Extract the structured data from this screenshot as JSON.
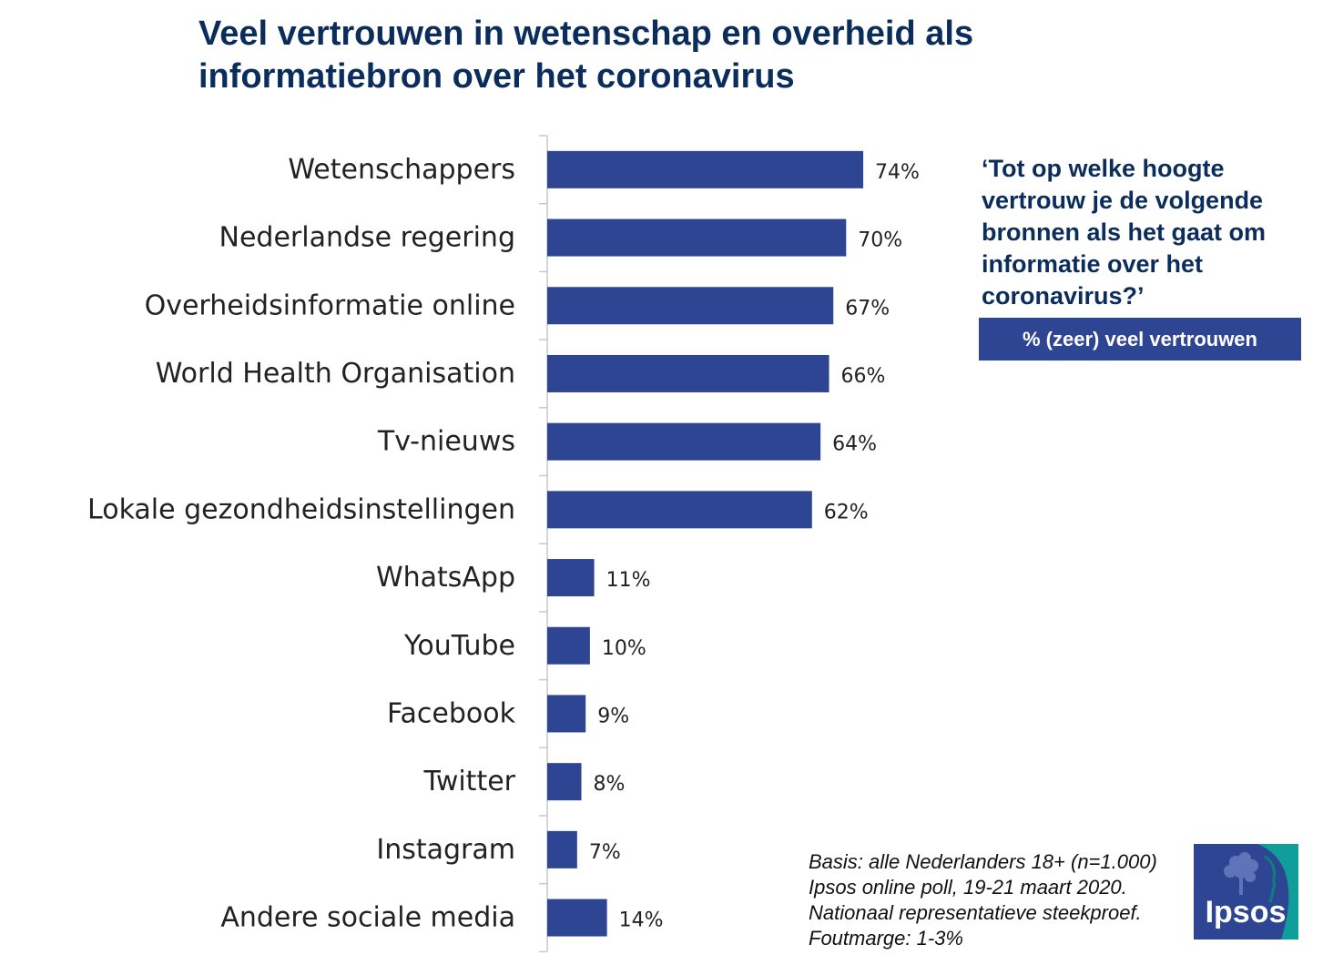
{
  "title": "Veel vertrouwen in wetenschap en overheid als informatiebron over het coronavirus",
  "question": "‘Tot op welke hoogte vertrouw je de volgende bronnen als het gaat om informatie over het coronavirus?’",
  "legend_label": "% (zeer) veel vertrouwen",
  "footnote": [
    "Basis: alle Nederlanders 18+ (n=1.000)",
    "Ipsos online poll, 19-21 maart 2020.",
    "Nationaal representatieve steekproef.",
    "Foutmarge: 1-3%"
  ],
  "logo_text": "Ipsos",
  "colors": {
    "bar": "#2e4593",
    "title": "#0b2d5c",
    "logo_blue": "#2e4593",
    "logo_teal": "#0f9e9a"
  },
  "chart_data": {
    "type": "bar",
    "orientation": "horizontal",
    "title": "Veel vertrouwen in wetenschap en overheid als informatiebron over het coronavirus",
    "series_name": "% (zeer) veel vertrouwen",
    "categories": [
      "Wetenschappers",
      "Nederlandse regering",
      "Overheidsinformatie online",
      "World Health Organisation",
      "Tv-nieuws",
      "Lokale gezondheidsinstellingen",
      "WhatsApp",
      "YouTube",
      "Facebook",
      "Twitter",
      "Instagram",
      "Andere sociale media"
    ],
    "values": [
      74,
      70,
      67,
      66,
      64,
      62,
      11,
      10,
      9,
      8,
      7,
      14
    ],
    "value_labels": [
      "74%",
      "70%",
      "67%",
      "66%",
      "64%",
      "62%",
      "11%",
      "10%",
      "9%",
      "8%",
      "7%",
      "14%"
    ],
    "xlim": [
      0,
      100
    ],
    "grid": false
  }
}
